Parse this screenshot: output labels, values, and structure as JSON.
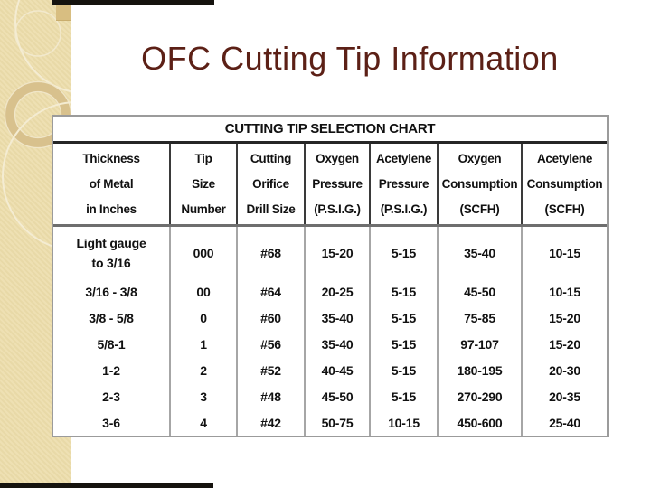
{
  "slide": {
    "title": "OFC Cutting Tip Information"
  },
  "table": {
    "caption": "CUTTING TIP SELECTION CHART",
    "columns": [
      "Thickness\nof Metal\nin Inches",
      "Tip\nSize\nNumber",
      "Cutting\nOrifice\nDrill Size",
      "Oxygen\nPressure\n(P.S.I.G.)",
      "Acetylene\nPressure\n(P.S.I.G.)",
      "Oxygen\nConsumption\n(SCFH)",
      "Acetylene\nConsumption\n(SCFH)"
    ],
    "rows": [
      [
        "Light gauge\nto 3/16",
        "000",
        "#68",
        "15-20",
        "5-15",
        "35-40",
        "10-15"
      ],
      [
        "3/16 - 3/8",
        "00",
        "#64",
        "20-25",
        "5-15",
        "45-50",
        "10-15"
      ],
      [
        "3/8 - 5/8",
        "0",
        "#60",
        "35-40",
        "5-15",
        "75-85",
        "15-20"
      ],
      [
        "5/8-1",
        "1",
        "#56",
        "35-40",
        "5-15",
        "97-107",
        "15-20"
      ],
      [
        "1-2",
        "2",
        "#52",
        "40-45",
        "5-15",
        "180-195",
        "20-30"
      ],
      [
        "2-3",
        "3",
        "#48",
        "45-50",
        "5-15",
        "270-290",
        "20-35"
      ],
      [
        "3-6",
        "4",
        "#42",
        "50-75",
        "10-15",
        "450-600",
        "25-40"
      ]
    ]
  },
  "chart_data": {
    "type": "table",
    "title": "CUTTING TIP SELECTION CHART",
    "columns": [
      "Thickness of Metal in Inches",
      "Tip Size Number",
      "Cutting Orifice Drill Size",
      "Oxygen Pressure (P.S.I.G.)",
      "Acetylene Pressure (P.S.I.G.)",
      "Oxygen Consumption (SCFH)",
      "Acetylene Consumption (SCFH)"
    ],
    "rows": [
      [
        "Light gauge to 3/16",
        "000",
        "#68",
        "15-20",
        "5-15",
        "35-40",
        "10-15"
      ],
      [
        "3/16 - 3/8",
        "00",
        "#64",
        "20-25",
        "5-15",
        "45-50",
        "10-15"
      ],
      [
        "3/8 - 5/8",
        "0",
        "#60",
        "35-40",
        "5-15",
        "75-85",
        "15-20"
      ],
      [
        "5/8-1",
        "1",
        "#56",
        "35-40",
        "5-15",
        "97-107",
        "15-20"
      ],
      [
        "1-2",
        "2",
        "#52",
        "40-45",
        "5-15",
        "180-195",
        "20-30"
      ],
      [
        "2-3",
        "3",
        "#48",
        "45-50",
        "5-15",
        "270-290",
        "20-35"
      ],
      [
        "3-6",
        "4",
        "#42",
        "50-75",
        "10-15",
        "450-600",
        "25-40"
      ]
    ]
  },
  "colors": {
    "title_text": "#5c2016",
    "sidebar_beige": "#ecdcaa",
    "ring_tan": "#d8c18d",
    "cream_outline": "#f4ecd2",
    "tan_square": "#d8be81",
    "accent_bar_black": "#15130e",
    "table_outer_border": "#9b9b9b",
    "caption_rule": "#262626",
    "header_rule": "#6e6e6e",
    "header_separator": "#3a3a3a",
    "data_separator": "#a6a6a6",
    "table_text": "#111111"
  }
}
